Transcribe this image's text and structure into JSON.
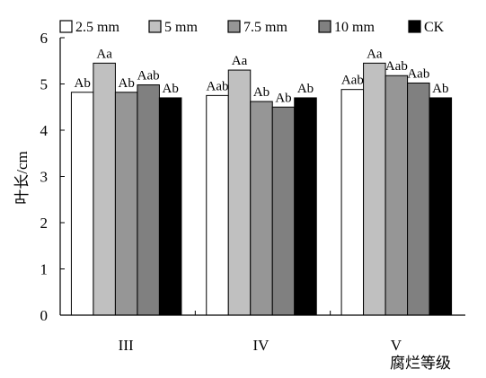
{
  "chart_data": {
    "type": "bar",
    "ylabel": "叶长/cm",
    "xlabel": "腐烂等级",
    "ylim": [
      0,
      6
    ],
    "yticks": [
      "0",
      "1",
      "2",
      "3",
      "4",
      "5",
      "6"
    ],
    "grid": false,
    "legend_position": "top",
    "categories": [
      "III",
      "IV",
      "V"
    ],
    "series": [
      {
        "name": "2.5 mm",
        "color": "#ffffff",
        "values": [
          4.82,
          4.75,
          4.88
        ],
        "labels": [
          "Ab",
          "Aab",
          "Aab"
        ]
      },
      {
        "name": "5 mm",
        "color": "#c0c0c0",
        "values": [
          5.45,
          5.3,
          5.45
        ],
        "labels": [
          "Aa",
          "Aa",
          "Aa"
        ]
      },
      {
        "name": "7.5 mm",
        "color": "#969696",
        "values": [
          4.82,
          4.62,
          5.18
        ],
        "labels": [
          "Ab",
          "Ab",
          "Aab"
        ]
      },
      {
        "name": "10 mm",
        "color": "#808080",
        "values": [
          4.98,
          4.5,
          5.02
        ],
        "labels": [
          "Aab",
          "Ab",
          "Aab"
        ]
      },
      {
        "name": "CK",
        "color": "#000000",
        "values": [
          4.7,
          4.7,
          4.7
        ],
        "labels": [
          "Ab",
          "Ab",
          "Ab"
        ]
      }
    ]
  }
}
